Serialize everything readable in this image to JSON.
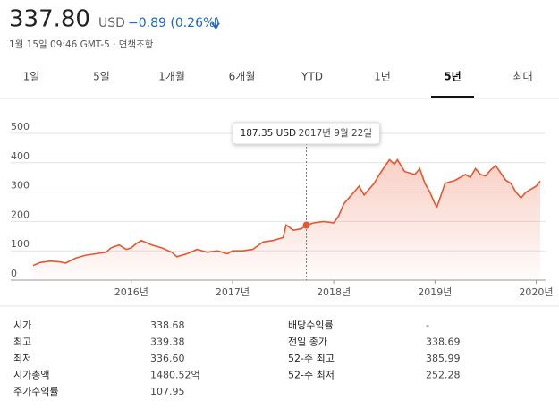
{
  "header": {
    "price": "337.80",
    "currency": "USD",
    "change": "−0.89 (0.26%)",
    "timestamp": "1월 15일 09:46 GMT-5 · 면책조항"
  },
  "tabs": {
    "items": [
      "1일",
      "5일",
      "1개월",
      "6개월",
      "YTD",
      "1년",
      "5년",
      "최대"
    ],
    "selected": 6
  },
  "chart_data": {
    "type": "line",
    "color": "#e8562f",
    "grid": true,
    "x": [
      2015.03,
      2015.1,
      2015.2,
      2015.3,
      2015.35,
      2015.45,
      2015.55,
      2015.65,
      2015.75,
      2015.8,
      2015.88,
      2015.95,
      2016.0,
      2016.05,
      2016.1,
      2016.2,
      2016.3,
      2016.4,
      2016.45,
      2016.55,
      2016.65,
      2016.75,
      2016.85,
      2016.95,
      2017.0,
      2017.1,
      2017.2,
      2017.3,
      2017.4,
      2017.5,
      2017.53,
      2017.6,
      2017.68,
      2017.73,
      2017.8,
      2017.9,
      2018.0,
      2018.05,
      2018.1,
      2018.15,
      2018.2,
      2018.25,
      2018.3,
      2018.35,
      2018.4,
      2018.45,
      2018.5,
      2018.55,
      2018.6,
      2018.63,
      2018.7,
      2018.8,
      2018.85,
      2018.9,
      2018.95,
      2019.0,
      2019.02,
      2019.05,
      2019.1,
      2019.2,
      2019.3,
      2019.35,
      2019.4,
      2019.45,
      2019.5,
      2019.55,
      2019.6,
      2019.65,
      2019.7,
      2019.75,
      2019.8,
      2019.85,
      2019.9,
      2019.95,
      2020.0,
      2020.04
    ],
    "values": [
      50,
      60,
      65,
      62,
      58,
      75,
      85,
      90,
      95,
      110,
      120,
      105,
      110,
      125,
      135,
      120,
      110,
      95,
      80,
      90,
      105,
      95,
      100,
      90,
      100,
      100,
      105,
      130,
      135,
      145,
      188,
      170,
      175,
      187.35,
      195,
      200,
      195,
      220,
      260,
      280,
      300,
      320,
      290,
      310,
      330,
      360,
      385,
      410,
      395,
      410,
      370,
      360,
      380,
      330,
      300,
      260,
      250,
      280,
      330,
      340,
      360,
      350,
      380,
      360,
      355,
      375,
      390,
      365,
      340,
      330,
      300,
      280,
      300,
      310,
      320,
      337.8
    ],
    "xlim": [
      2015.03,
      2020.04
    ],
    "xticks": [
      {
        "value": 2016,
        "label": "2016년"
      },
      {
        "value": 2017,
        "label": "2017년"
      },
      {
        "value": 2018,
        "label": "2018년"
      },
      {
        "value": 2019,
        "label": "2019년"
      },
      {
        "value": 2020,
        "label": "2020년"
      }
    ],
    "ylim": [
      0,
      500
    ],
    "yticks": [
      0,
      100,
      200,
      300,
      400,
      500
    ],
    "tooltip": {
      "value": "187.35 USD",
      "date": "2017년 9월 22일"
    }
  },
  "stats": {
    "left": [
      [
        "시가",
        "338.68"
      ],
      [
        "최고",
        "339.38"
      ],
      [
        "최저",
        "336.60"
      ],
      [
        "시가총액",
        "1480.52억"
      ],
      [
        "주가수익률",
        "107.95"
      ]
    ],
    "right": [
      [
        "배당수익률",
        "-"
      ],
      [
        "전일 종가",
        "338.69"
      ],
      [
        "52-주 최고",
        "385.99"
      ],
      [
        "52-주 최저",
        "252.28"
      ]
    ]
  }
}
